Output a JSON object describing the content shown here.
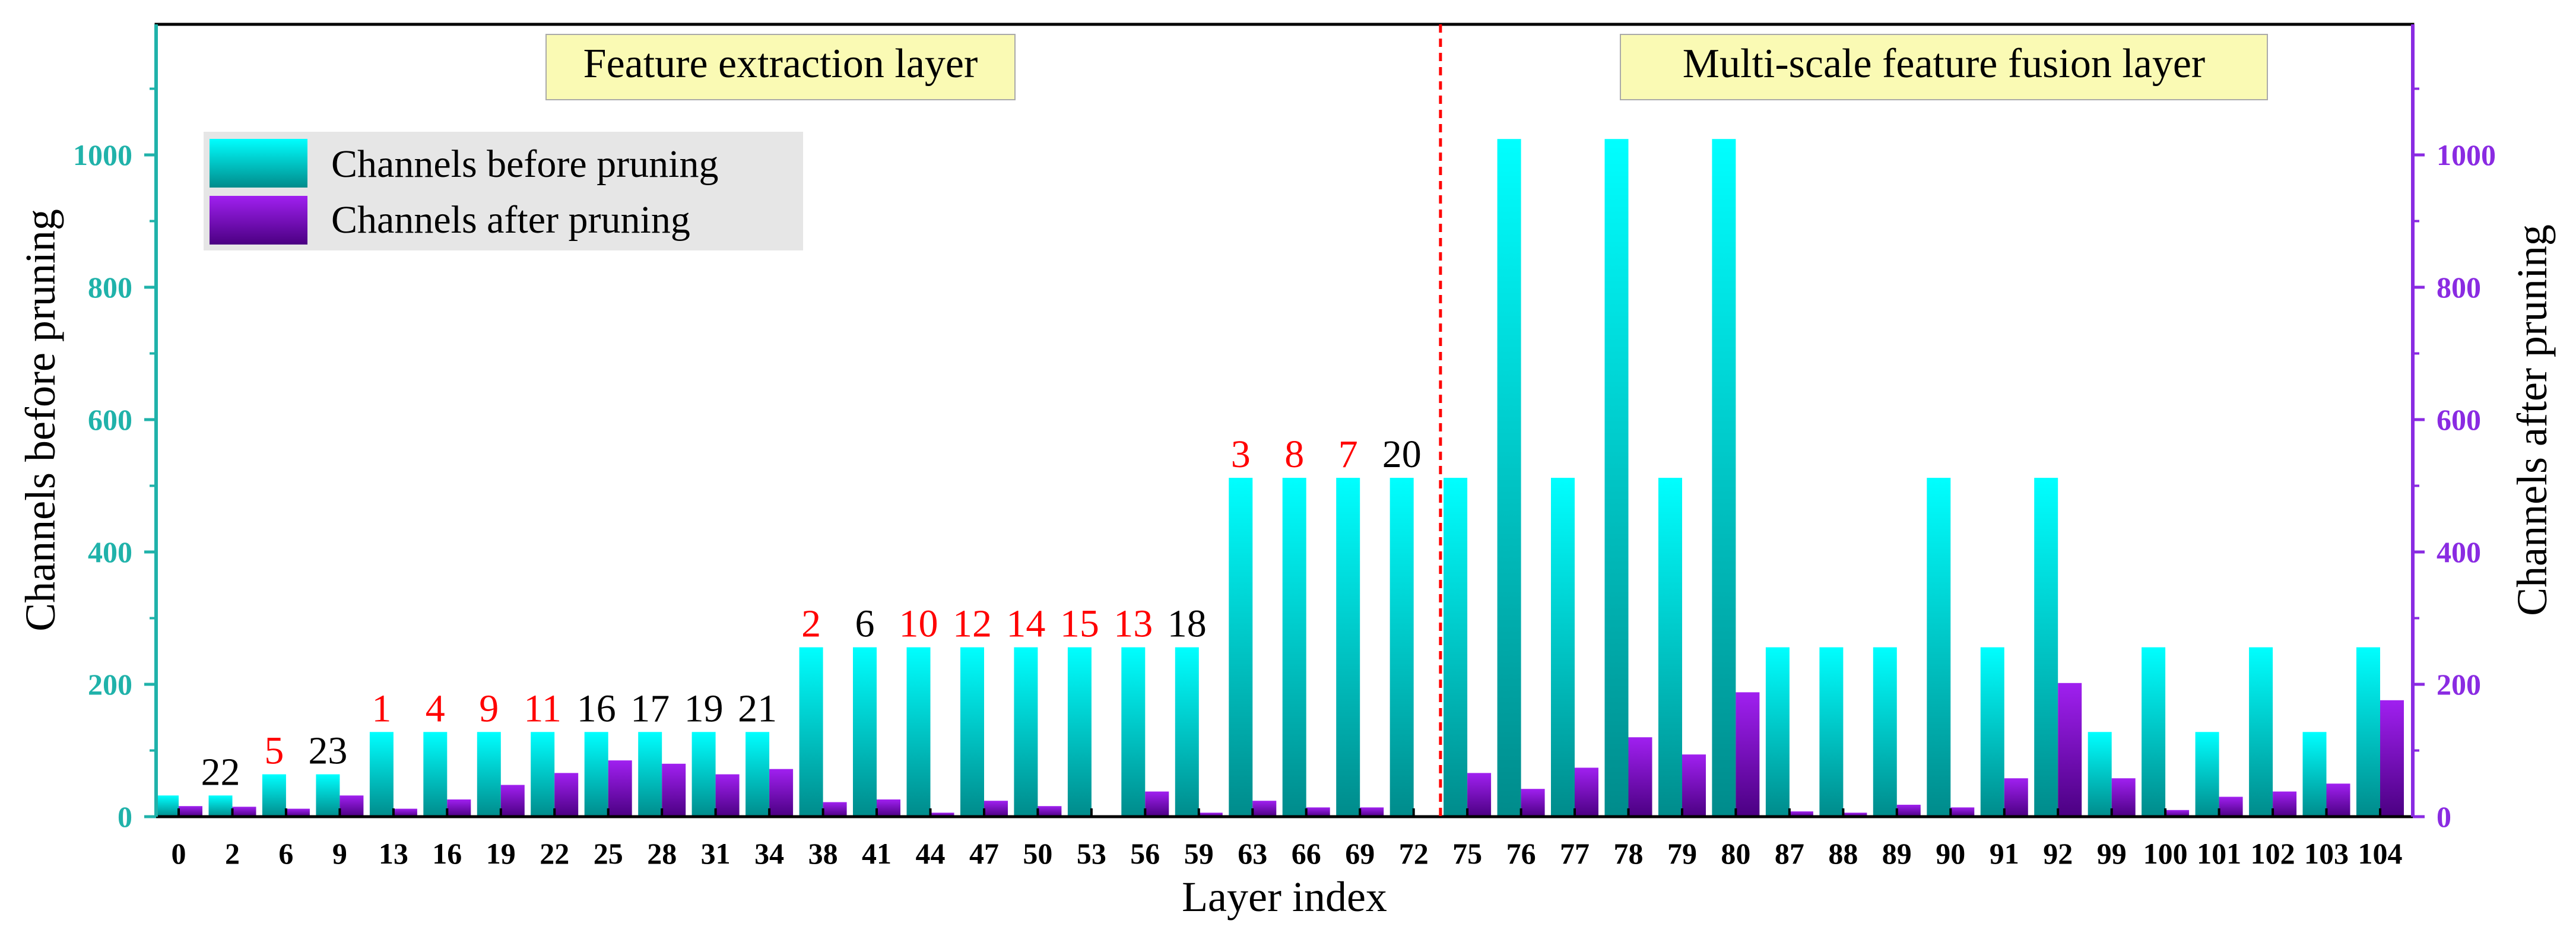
{
  "chart_data": {
    "type": "bar",
    "xlabel": "Layer index",
    "ylabel_left": "Channels before pruning",
    "ylabel_right": "Channels after pruning",
    "ylim": [
      0,
      1200
    ],
    "yticks": [
      0,
      200,
      400,
      600,
      800,
      1000
    ],
    "categories": [
      "0",
      "2",
      "6",
      "9",
      "13",
      "16",
      "19",
      "22",
      "25",
      "28",
      "31",
      "34",
      "38",
      "41",
      "44",
      "47",
      "50",
      "53",
      "56",
      "59",
      "63",
      "66",
      "69",
      "72",
      "75",
      "76",
      "77",
      "78",
      "79",
      "80",
      "87",
      "88",
      "89",
      "90",
      "91",
      "92",
      "99",
      "100",
      "101",
      "102",
      "103",
      "104"
    ],
    "series": [
      {
        "name": "Channels before pruning",
        "axis": "left",
        "values": [
          32,
          32,
          64,
          64,
          128,
          128,
          128,
          128,
          128,
          128,
          128,
          128,
          256,
          256,
          256,
          256,
          256,
          256,
          256,
          256,
          512,
          512,
          512,
          512,
          512,
          1024,
          512,
          1024,
          512,
          1024,
          256,
          256,
          256,
          512,
          256,
          512,
          128,
          256,
          128,
          256,
          128,
          256
        ]
      },
      {
        "name": "Channels after pruning",
        "axis": "right",
        "values": [
          16,
          15,
          12,
          32,
          12,
          26,
          48,
          66,
          85,
          80,
          64,
          72,
          22,
          26,
          6,
          24,
          16,
          2,
          38,
          6,
          24,
          14,
          14,
          2,
          66,
          42,
          74,
          120,
          94,
          188,
          8,
          6,
          18,
          14,
          58,
          202,
          58,
          10,
          30,
          38,
          50,
          176
        ]
      }
    ],
    "bar_labels": [
      {
        "category": "2",
        "text": "22",
        "color": "#000000"
      },
      {
        "category": "6",
        "text": "5",
        "color": "#ff0000"
      },
      {
        "category": "9",
        "text": "23",
        "color": "#000000"
      },
      {
        "category": "13",
        "text": "1",
        "color": "#ff0000"
      },
      {
        "category": "16",
        "text": "4",
        "color": "#ff0000"
      },
      {
        "category": "19",
        "text": "9",
        "color": "#ff0000"
      },
      {
        "category": "22",
        "text": "11",
        "color": "#ff0000"
      },
      {
        "category": "25",
        "text": "16",
        "color": "#000000"
      },
      {
        "category": "28",
        "text": "17",
        "color": "#000000"
      },
      {
        "category": "31",
        "text": "19",
        "color": "#000000"
      },
      {
        "category": "34",
        "text": "21",
        "color": "#000000"
      },
      {
        "category": "38",
        "text": "2",
        "color": "#ff0000"
      },
      {
        "category": "41",
        "text": "6",
        "color": "#000000"
      },
      {
        "category": "44",
        "text": "10",
        "color": "#ff0000"
      },
      {
        "category": "47",
        "text": "12",
        "color": "#ff0000"
      },
      {
        "category": "50",
        "text": "14",
        "color": "#ff0000"
      },
      {
        "category": "53",
        "text": "15",
        "color": "#ff0000"
      },
      {
        "category": "56",
        "text": "13",
        "color": "#ff0000"
      },
      {
        "category": "59",
        "text": "18",
        "color": "#000000"
      },
      {
        "category": "63",
        "text": "3",
        "color": "#ff0000"
      },
      {
        "category": "66",
        "text": "8",
        "color": "#ff0000"
      },
      {
        "category": "69",
        "text": "7",
        "color": "#ff0000"
      },
      {
        "category": "72",
        "text": "20",
        "color": "#000000"
      }
    ],
    "regions": [
      {
        "label": "Feature extraction layer"
      },
      {
        "label": "Multi-scale feature fusion layer"
      }
    ],
    "divider_after_category": "72",
    "legend_placement": "top-left",
    "colors": {
      "before_top": "#00ffff",
      "before_bottom": "#008b8b",
      "after_top": "#a020f0",
      "after_bottom": "#4b0082",
      "left_axis": "#20b2aa",
      "right_axis": "#8a2be2",
      "divider": "#ff0000",
      "region_box": "#fafab4"
    }
  }
}
